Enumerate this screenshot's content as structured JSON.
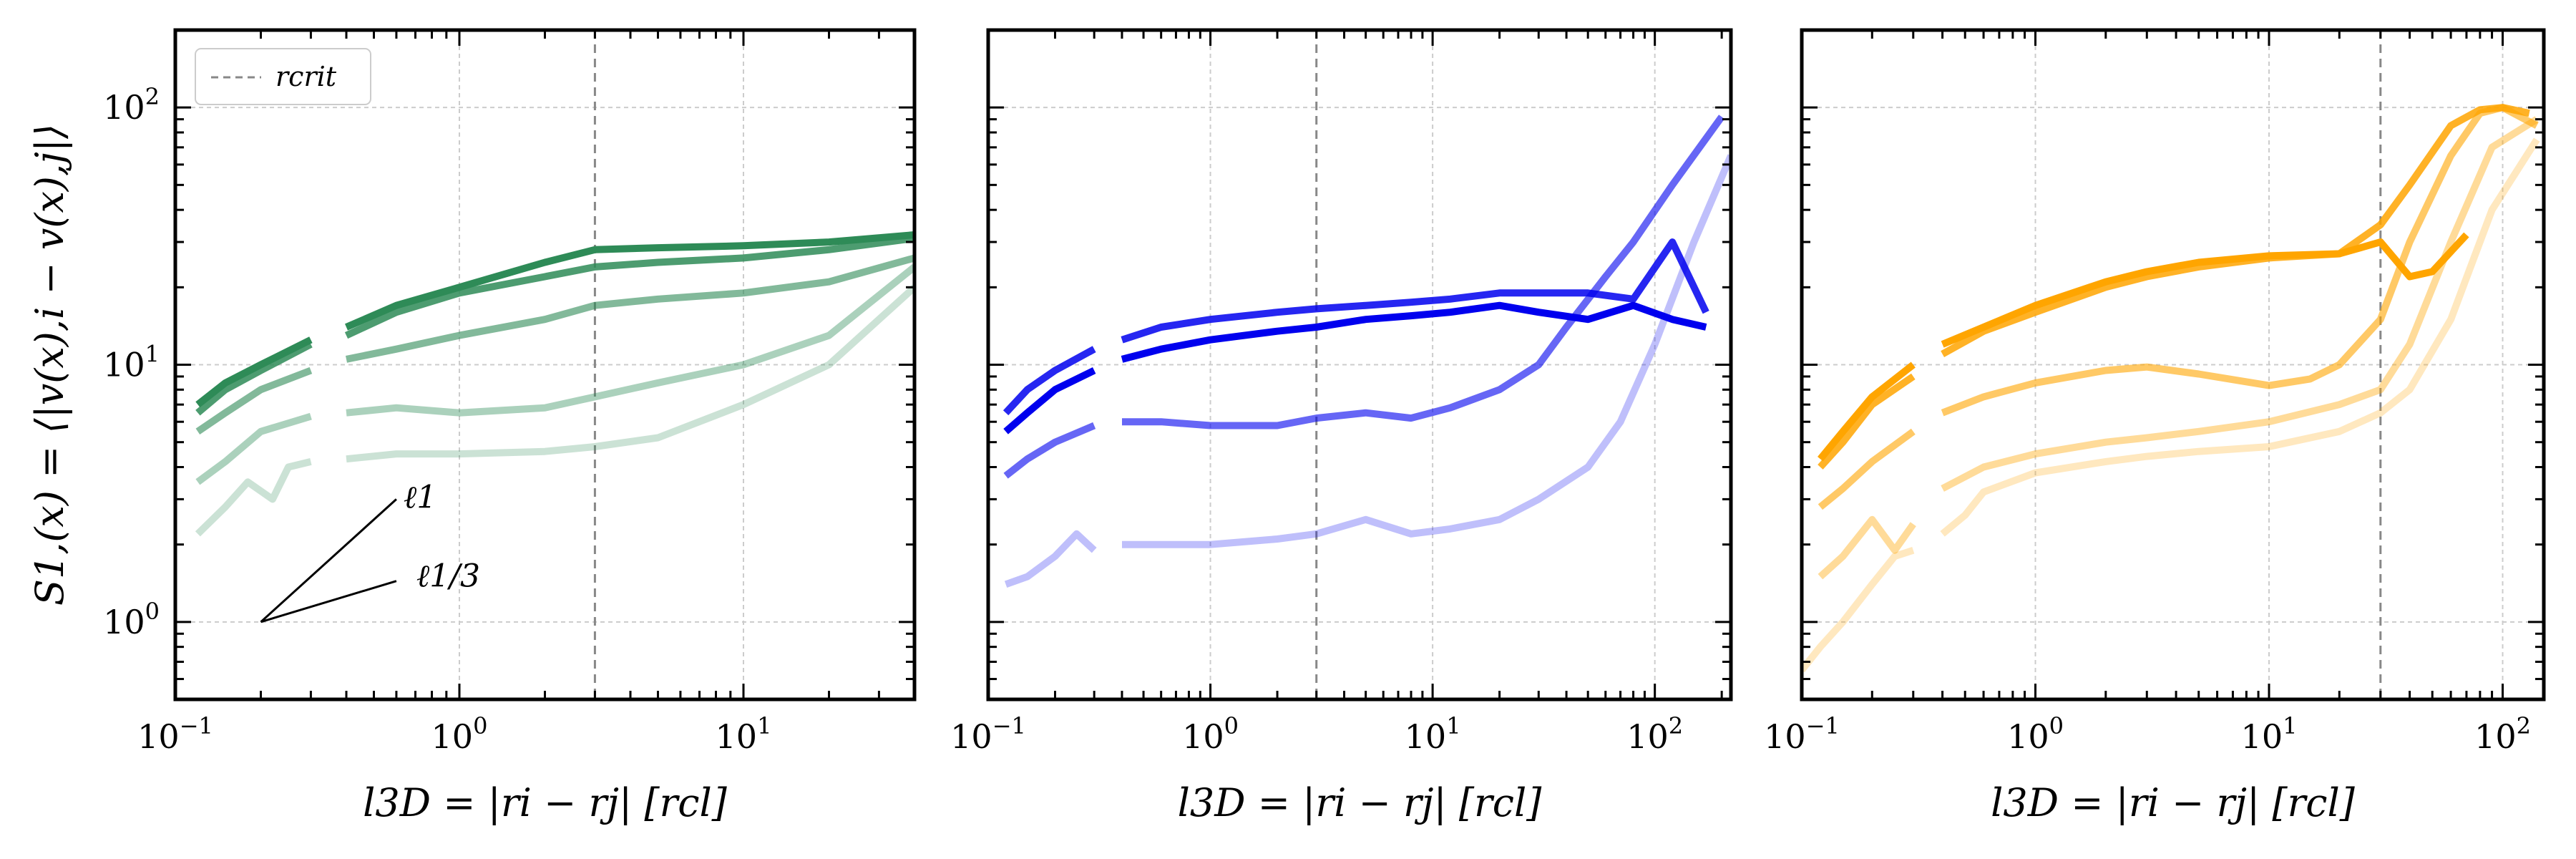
{
  "chart_data": [
    {
      "type": "line",
      "panel": "left",
      "xscale": "log",
      "yscale": "log",
      "xlim": [
        0.1,
        40
      ],
      "ylim": [
        0.5,
        200
      ],
      "xticks": [
        {
          "v": 0.1,
          "b": "10",
          "e": "−1"
        },
        {
          "v": 1,
          "b": "10",
          "e": "0"
        },
        {
          "v": 10,
          "b": "10",
          "e": "1"
        }
      ],
      "yticks": [
        {
          "v": 1,
          "b": "10",
          "e": "0"
        },
        {
          "v": 10,
          "b": "10",
          "e": "1"
        },
        {
          "v": 100,
          "b": "10",
          "e": "2"
        }
      ],
      "ylabel": "S1,(x) = ⟨|v(x),i − v(x),j|⟩",
      "xlabel": "l3D = |ri − rj| [rcl]",
      "grid": true,
      "vline": 3,
      "legend": {
        "label": "rcrit",
        "placement": "top-left"
      },
      "slope_labels": [
        "ℓ1",
        "ℓ1/3"
      ],
      "gap": [
        0.33,
        0.38
      ],
      "series": [
        {
          "color": "#2e8b57",
          "opacity": 1.0,
          "x": [
            0.12,
            0.15,
            0.2,
            0.3,
            0.4,
            0.6,
            1,
            2,
            3,
            5,
            10,
            20,
            40
          ],
          "y": [
            7,
            8.5,
            10,
            12.5,
            14,
            17,
            20,
            25,
            28,
            28.5,
            29,
            30,
            32
          ]
        },
        {
          "color": "#2e8b57",
          "opacity": 0.85,
          "x": [
            0.12,
            0.15,
            0.2,
            0.3,
            0.4,
            0.6,
            1,
            2,
            3,
            5,
            10,
            20,
            40
          ],
          "y": [
            6.5,
            8,
            9.5,
            12,
            13,
            16,
            19,
            22,
            24,
            25,
            26,
            28,
            31
          ]
        },
        {
          "color": "#2e8b57",
          "opacity": 0.6,
          "x": [
            0.12,
            0.15,
            0.2,
            0.3,
            0.4,
            0.6,
            1,
            2,
            3,
            5,
            10,
            20,
            40
          ],
          "y": [
            5.5,
            6.5,
            8,
            9.5,
            10.5,
            11.5,
            13,
            15,
            17,
            18,
            19,
            21,
            26
          ]
        },
        {
          "color": "#2e8b57",
          "opacity": 0.4,
          "x": [
            0.12,
            0.15,
            0.2,
            0.3,
            0.4,
            0.6,
            1,
            2,
            3,
            5,
            10,
            20,
            40
          ],
          "y": [
            3.5,
            4.2,
            5.5,
            6.3,
            6.5,
            6.8,
            6.5,
            6.8,
            7.5,
            8.5,
            10,
            13,
            24
          ]
        },
        {
          "color": "#2e8b57",
          "opacity": 0.25,
          "x": [
            0.12,
            0.15,
            0.18,
            0.22,
            0.25,
            0.3,
            0.4,
            0.6,
            1,
            2,
            3,
            5,
            10,
            20,
            40
          ],
          "y": [
            2.2,
            2.8,
            3.5,
            3.0,
            4.0,
            4.2,
            4.3,
            4.5,
            4.5,
            4.6,
            4.8,
            5.2,
            7,
            10,
            20
          ]
        }
      ]
    },
    {
      "type": "line",
      "panel": "middle",
      "xscale": "log",
      "yscale": "log",
      "xlim": [
        0.1,
        220
      ],
      "ylim": [
        0.5,
        200
      ],
      "xticks": [
        {
          "v": 0.1,
          "b": "10",
          "e": "−1"
        },
        {
          "v": 1,
          "b": "10",
          "e": "0"
        },
        {
          "v": 10,
          "b": "10",
          "e": "1"
        },
        {
          "v": 100,
          "b": "10",
          "e": "2"
        }
      ],
      "xlabel": "l3D = |ri − rj| [rcl]",
      "grid": true,
      "vline": 3,
      "gap": [
        0.3,
        0.36
      ],
      "series": [
        {
          "color": "#0000ee",
          "opacity": 1.0,
          "x": [
            0.12,
            0.15,
            0.2,
            0.3,
            0.4,
            0.6,
            1,
            2,
            3,
            5,
            8,
            12,
            20,
            30,
            50,
            80,
            120,
            170
          ],
          "y": [
            5.5,
            6.5,
            8,
            9.5,
            10.5,
            11.5,
            12.5,
            13.5,
            14,
            15,
            15.5,
            16,
            17,
            16,
            15,
            17,
            15,
            14
          ]
        },
        {
          "color": "#0000ee",
          "opacity": 0.85,
          "x": [
            0.12,
            0.15,
            0.2,
            0.3,
            0.4,
            0.6,
            1,
            2,
            3,
            5,
            8,
            12,
            20,
            30,
            50,
            80,
            120,
            170
          ],
          "y": [
            6.5,
            8,
            9.5,
            11.5,
            12.5,
            14,
            15,
            16,
            16.5,
            17,
            17.5,
            18,
            19,
            19,
            19,
            18,
            30,
            16
          ]
        },
        {
          "color": "#0000ee",
          "opacity": 0.6,
          "x": [
            0.12,
            0.15,
            0.2,
            0.3,
            0.4,
            0.6,
            1,
            2,
            3,
            5,
            8,
            12,
            20,
            30,
            40,
            60,
            80,
            120,
            200
          ],
          "y": [
            3.7,
            4.3,
            5,
            5.8,
            6,
            6,
            5.8,
            5.8,
            6.2,
            6.5,
            6.2,
            6.8,
            8,
            10,
            14,
            22,
            30,
            50,
            92
          ]
        },
        {
          "color": "#0000ee",
          "opacity": 0.25,
          "x": [
            0.12,
            0.15,
            0.2,
            0.25,
            0.3,
            0.4,
            0.6,
            1,
            2,
            3,
            5,
            8,
            12,
            20,
            30,
            50,
            70,
            100,
            150,
            220
          ],
          "y": [
            1.4,
            1.5,
            1.8,
            2.2,
            1.9,
            2.0,
            2.0,
            2.0,
            2.1,
            2.2,
            2.5,
            2.2,
            2.3,
            2.5,
            3.0,
            4.0,
            6.0,
            12,
            30,
            65
          ]
        }
      ]
    },
    {
      "type": "line",
      "panel": "right",
      "xscale": "log",
      "yscale": "log",
      "xlim": [
        0.1,
        150
      ],
      "ylim": [
        0.5,
        200
      ],
      "xticks": [
        {
          "v": 0.1,
          "b": "10",
          "e": "−1"
        },
        {
          "v": 1,
          "b": "10",
          "e": "0"
        },
        {
          "v": 10,
          "b": "10",
          "e": "1"
        },
        {
          "v": 100,
          "b": "10",
          "e": "2"
        }
      ],
      "xlabel": "l3D = |ri − rj| [rcl]",
      "grid": true,
      "vline": 30,
      "gap": [
        0.3,
        0.36
      ],
      "series": [
        {
          "color": "#ffa500",
          "opacity": 1.0,
          "x": [
            0.12,
            0.15,
            0.2,
            0.3,
            0.4,
            0.6,
            1,
            2,
            3,
            5,
            10,
            20,
            30,
            40,
            50,
            70
          ],
          "y": [
            4.3,
            5.5,
            7.5,
            10,
            12,
            14,
            17,
            21,
            23,
            25,
            26.5,
            27,
            30,
            22,
            23,
            32
          ]
        },
        {
          "color": "#ffa500",
          "opacity": 0.85,
          "x": [
            0.12,
            0.15,
            0.2,
            0.3,
            0.4,
            0.6,
            1,
            2,
            3,
            5,
            10,
            20,
            30,
            40,
            60,
            80,
            100,
            130
          ],
          "y": [
            4.0,
            5.0,
            7,
            9,
            11,
            13.5,
            16,
            20,
            22,
            24,
            26,
            27,
            35,
            50,
            85,
            98,
            100,
            95
          ]
        },
        {
          "color": "#ffa500",
          "opacity": 0.6,
          "x": [
            0.12,
            0.15,
            0.2,
            0.3,
            0.4,
            0.6,
            1,
            2,
            3,
            5,
            10,
            15,
            20,
            30,
            40,
            60,
            80,
            100,
            140
          ],
          "y": [
            2.8,
            3.3,
            4.2,
            5.5,
            6.5,
            7.5,
            8.5,
            9.5,
            9.8,
            9.2,
            8.3,
            8.8,
            10,
            15,
            30,
            65,
            95,
            100,
            85
          ]
        },
        {
          "color": "#ffa500",
          "opacity": 0.4,
          "x": [
            0.12,
            0.15,
            0.2,
            0.25,
            0.3,
            0.4,
            0.6,
            1,
            2,
            3,
            5,
            10,
            20,
            30,
            40,
            60,
            90,
            140
          ],
          "y": [
            1.5,
            1.8,
            2.5,
            1.9,
            2.4,
            3.3,
            4.0,
            4.5,
            5.0,
            5.2,
            5.5,
            6,
            7,
            8,
            12,
            30,
            70,
            90
          ]
        },
        {
          "color": "#ffa500",
          "opacity": 0.25,
          "x": [
            0.1,
            0.12,
            0.15,
            0.2,
            0.25,
            0.3,
            0.4,
            0.5,
            0.6,
            1,
            2,
            3,
            5,
            10,
            20,
            30,
            40,
            60,
            90,
            140
          ],
          "y": [
            0.65,
            0.8,
            1.0,
            1.4,
            1.8,
            1.9,
            2.2,
            2.6,
            3.2,
            3.8,
            4.2,
            4.4,
            4.6,
            4.8,
            5.5,
            6.5,
            8,
            15,
            40,
            75
          ]
        }
      ]
    }
  ]
}
